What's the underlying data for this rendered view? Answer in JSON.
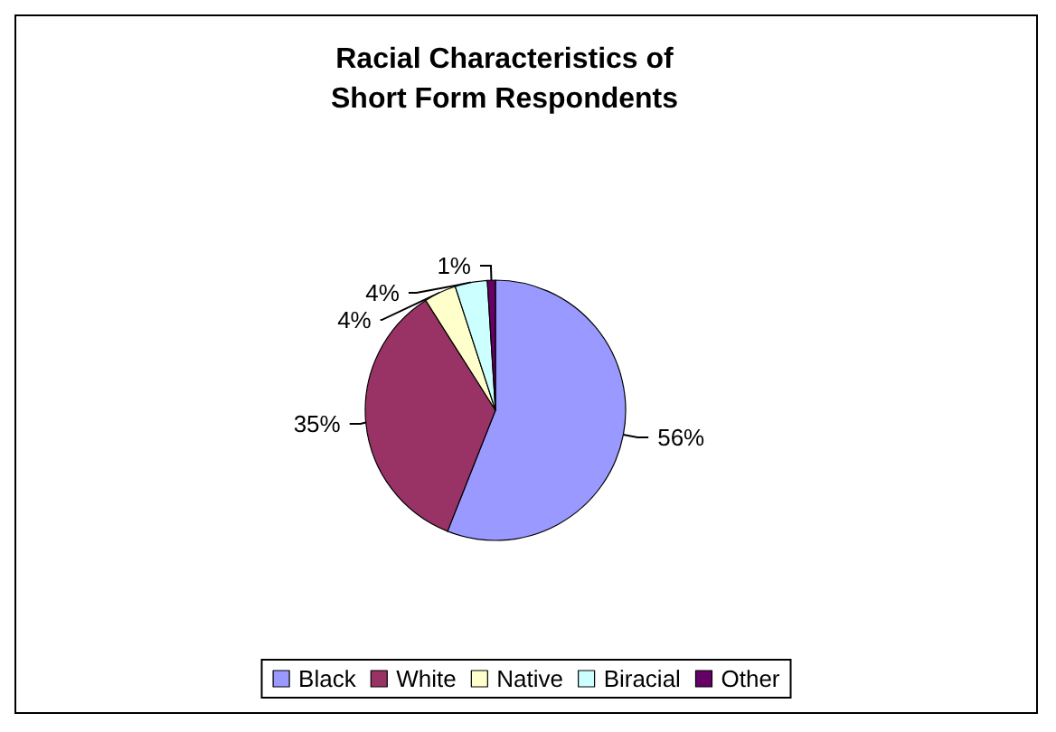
{
  "chart_data": {
    "type": "pie",
    "title": "Racial Characteristics of\nShort Form Respondents",
    "categories": [
      "Black",
      "White",
      "Native",
      "Biracial",
      "Other"
    ],
    "values": [
      56,
      35,
      4,
      4,
      1
    ],
    "colors": [
      "#9999ff",
      "#993366",
      "#ffffcc",
      "#ccffff",
      "#660066"
    ],
    "value_labels": [
      "56%",
      "35%",
      "4%",
      "4%",
      "1%"
    ],
    "legend": "bottom"
  }
}
